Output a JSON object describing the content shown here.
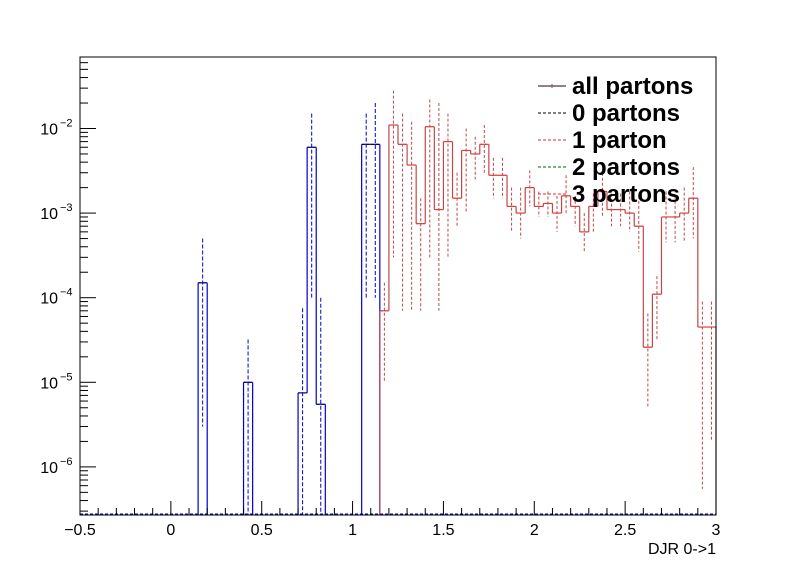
{
  "chart_data": {
    "type": "histogram",
    "title": "",
    "xlabel": "DJR 0->1",
    "ylabel": "",
    "xlim": [
      -0.5,
      3
    ],
    "ylim": [
      2.7e-07,
      0.07
    ],
    "yscale": "log",
    "grid": false,
    "legend_position": "top-right",
    "bin_width": 0.05,
    "x_ticks": [
      {
        "value": -0.5,
        "label": "−0.5"
      },
      {
        "value": 0,
        "label": "0"
      },
      {
        "value": 0.5,
        "label": "0.5"
      },
      {
        "value": 1,
        "label": "1"
      },
      {
        "value": 1.5,
        "label": "1.5"
      },
      {
        "value": 2,
        "label": "2"
      },
      {
        "value": 2.5,
        "label": "2.5"
      },
      {
        "value": 3,
        "label": "3"
      }
    ],
    "y_ticks": [
      {
        "value": 1e-06,
        "base": "10",
        "exp": "−6"
      },
      {
        "value": 1e-05,
        "base": "10",
        "exp": "−5"
      },
      {
        "value": 0.0001,
        "base": "10",
        "exp": "−4"
      },
      {
        "value": 0.001,
        "base": "10",
        "exp": "−3"
      },
      {
        "value": 0.01,
        "base": "10",
        "exp": "−2"
      }
    ],
    "legend": [
      {
        "label": "all partons",
        "color": "#6b5a5a",
        "style": "solid"
      },
      {
        "label": "0 partons",
        "color": "#000000",
        "style": "dashed"
      },
      {
        "label": "1 parton",
        "color": "#d03030",
        "style": "dashed"
      },
      {
        "label": "2 partons",
        "color": "#006600",
        "style": "dashed"
      },
      {
        "label": "3 partons",
        "color": "#ff2020",
        "style": "dashed"
      }
    ],
    "series": [
      {
        "name": "0 partons",
        "color": "#0000cc",
        "bins": [
          {
            "x0": 0.15,
            "y": 0.00015,
            "err_hi": 0.0005,
            "err_lo": 3e-06
          },
          {
            "x0": 0.4,
            "y": 1e-05,
            "err_hi": 3.2e-05,
            "err_lo": 2e-07
          },
          {
            "x0": 0.7,
            "y": 7.5e-06,
            "err_hi": 7.5e-05,
            "err_lo": 2e-07
          },
          {
            "x0": 0.75,
            "y": 0.006,
            "err_hi": 0.015,
            "err_lo": 0.0001
          },
          {
            "x0": 0.8,
            "y": 5.5e-06,
            "err_hi": 0.0001,
            "err_lo": 2e-07
          },
          {
            "x0": 1.05,
            "y": 0.0065,
            "err_hi": 0.015,
            "err_lo": 0.0001
          },
          {
            "x0": 1.1,
            "y": 0.0065,
            "err_hi": 0.02,
            "err_lo": 0.0001
          }
        ]
      },
      {
        "name": "1 parton",
        "color": "#c04848",
        "bins": [
          {
            "x0": 1.15,
            "y": 7e-05,
            "err_hi": 0.00015,
            "err_lo": 1e-05
          },
          {
            "x0": 1.2,
            "y": 0.011,
            "err_hi": 0.028,
            "err_lo": 0.0003
          },
          {
            "x0": 1.25,
            "y": 0.0065,
            "err_hi": 0.015,
            "err_lo": 7e-05
          },
          {
            "x0": 1.3,
            "y": 0.0037,
            "err_hi": 0.012,
            "err_lo": 7e-05
          },
          {
            "x0": 1.35,
            "y": 0.00075,
            "err_hi": 0.0015,
            "err_lo": 7e-05
          },
          {
            "x0": 1.4,
            "y": 0.0105,
            "err_hi": 0.022,
            "err_lo": 0.0003
          },
          {
            "x0": 1.45,
            "y": 0.0011,
            "err_hi": 0.02,
            "err_lo": 7e-05
          },
          {
            "x0": 1.5,
            "y": 0.007,
            "err_hi": 0.015,
            "err_lo": 0.0003
          },
          {
            "x0": 1.55,
            "y": 0.0015,
            "err_hi": 0.003,
            "err_lo": 0.0007
          },
          {
            "x0": 1.6,
            "y": 0.0055,
            "err_hi": 0.01,
            "err_lo": 0.001
          },
          {
            "x0": 1.65,
            "y": 0.005,
            "err_hi": 0.008,
            "err_lo": 0.0025
          },
          {
            "x0": 1.7,
            "y": 0.0065,
            "err_hi": 0.011,
            "err_lo": 0.003
          },
          {
            "x0": 1.75,
            "y": 0.0028,
            "err_hi": 0.0045,
            "err_lo": 0.0015
          },
          {
            "x0": 1.8,
            "y": 0.0028,
            "err_hi": 0.0045,
            "err_lo": 0.0015
          },
          {
            "x0": 1.85,
            "y": 0.0012,
            "err_hi": 0.002,
            "err_lo": 0.0006
          },
          {
            "x0": 1.9,
            "y": 0.001,
            "err_hi": 0.002,
            "err_lo": 0.0005
          },
          {
            "x0": 1.95,
            "y": 0.002,
            "err_hi": 0.0032,
            "err_lo": 0.0012
          },
          {
            "x0": 2.0,
            "y": 0.0012,
            "err_hi": 0.0018,
            "err_lo": 0.0009
          },
          {
            "x0": 2.05,
            "y": 0.0013,
            "err_hi": 0.0018,
            "err_lo": 0.0009
          },
          {
            "x0": 2.1,
            "y": 0.001,
            "err_hi": 0.0016,
            "err_lo": 0.0006
          },
          {
            "x0": 2.15,
            "y": 0.0016,
            "err_hi": 0.0028,
            "err_lo": 0.001
          },
          {
            "x0": 2.2,
            "y": 0.0012,
            "err_hi": 0.0016,
            "err_lo": 0.0007
          },
          {
            "x0": 2.25,
            "y": 0.0006,
            "err_hi": 0.001,
            "err_lo": 0.00035
          },
          {
            "x0": 2.3,
            "y": 0.0012,
            "err_hi": 0.0017,
            "err_lo": 0.0006
          },
          {
            "x0": 2.35,
            "y": 0.0018,
            "err_hi": 0.003,
            "err_lo": 0.0009
          },
          {
            "x0": 2.4,
            "y": 0.0011,
            "err_hi": 0.0017,
            "err_lo": 0.0007
          },
          {
            "x0": 2.45,
            "y": 0.0011,
            "err_hi": 0.0017,
            "err_lo": 0.0007
          },
          {
            "x0": 2.5,
            "y": 0.001,
            "err_hi": 0.0018,
            "err_lo": 0.0006
          },
          {
            "x0": 2.55,
            "y": 0.0007,
            "err_hi": 0.0016,
            "err_lo": 0.00035
          },
          {
            "x0": 2.6,
            "y": 2.6e-05,
            "err_hi": 6.5e-05,
            "err_lo": 5e-06
          },
          {
            "x0": 2.65,
            "y": 0.00011,
            "err_hi": 0.00018,
            "err_lo": 3.2e-05
          },
          {
            "x0": 2.7,
            "y": 0.0009,
            "err_hi": 0.0018,
            "err_lo": 0.00045
          },
          {
            "x0": 2.75,
            "y": 0.0009,
            "err_hi": 0.0016,
            "err_lo": 0.00045
          },
          {
            "x0": 2.8,
            "y": 0.001,
            "err_hi": 0.002,
            "err_lo": 0.00045
          },
          {
            "x0": 2.85,
            "y": 0.0015,
            "err_hi": 0.0035,
            "err_lo": 0.0005
          },
          {
            "x0": 2.9,
            "y": 4.5e-05,
            "err_hi": 9e-05,
            "err_lo": 5.5e-07
          },
          {
            "x0": 2.95,
            "y": 4.5e-05,
            "err_hi": 9e-05,
            "err_lo": 2e-06
          }
        ]
      }
    ]
  }
}
